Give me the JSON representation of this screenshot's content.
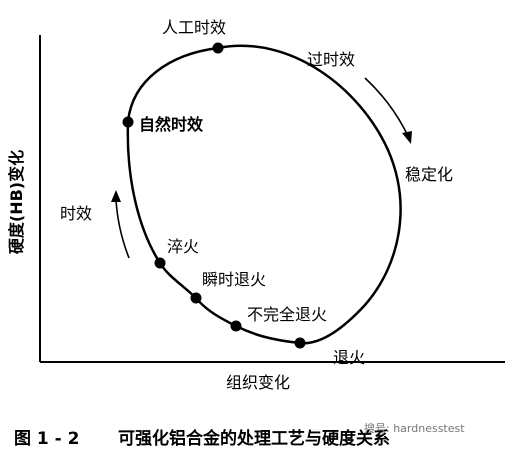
{
  "diagram": {
    "axes": {
      "y_label": "硬度(HB)变化",
      "x_label": "组织变化"
    },
    "points": [
      {
        "label": "人工时效"
      },
      {
        "label": "自然时效"
      },
      {
        "label": "淬火"
      },
      {
        "label": "瞬时退火"
      },
      {
        "label": "不完全退火"
      },
      {
        "label": "退火"
      }
    ],
    "arrows": [
      {
        "label": "过时效"
      },
      {
        "label": "时效"
      }
    ],
    "region_labels": [
      {
        "label": "稳定化"
      }
    ]
  },
  "caption": {
    "number": "图 1 - 2",
    "title": "可强化铝合金的处理工艺与硬度关系"
  },
  "watermark": {
    "text": "搜号: hardnesstest"
  }
}
